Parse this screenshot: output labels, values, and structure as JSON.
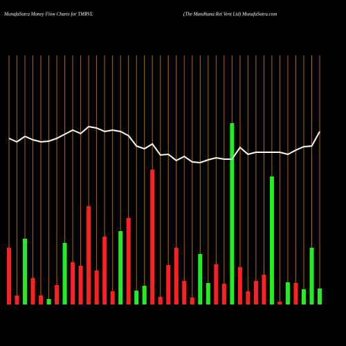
{
  "chart_data": {
    "type": "bar",
    "title": "MunafaSutra  Money Flow  Charts for TMRVL",
    "subtitle": "(The    Mandhana  Ret Vent Ltd) MunafaSutra.com",
    "categories": [
      null,
      null,
      null,
      null,
      null,
      null,
      null,
      null,
      null,
      null,
      null,
      null,
      null,
      null,
      null,
      null,
      null,
      null,
      null,
      null,
      null,
      null,
      null,
      null,
      null,
      null,
      null,
      null,
      null,
      null,
      null,
      null,
      null,
      null,
      null,
      null,
      null,
      null,
      null,
      null
    ],
    "values": [
      82,
      13,
      95,
      38,
      13,
      8,
      28,
      89,
      61,
      56,
      142,
      49,
      98,
      19,
      106,
      125,
      20,
      27,
      195,
      11,
      57,
      82,
      34,
      10,
      73,
      31,
      58,
      30,
      262,
      54,
      19,
      34,
      43,
      185,
      4,
      32,
      31,
      22,
      82,
      23
    ],
    "colors": [
      "#ff2020",
      "#ff2020",
      "#22ee22",
      "#ff2020",
      "#ff2020",
      "#22ee22",
      "#ff2020",
      "#22ee22",
      "#ff2020",
      "#ff2020",
      "#ff2020",
      "#ff2020",
      "#ff2020",
      "#ff2020",
      "#22ee22",
      "#ff2020",
      "#22ee22",
      "#22ee22",
      "#ff2020",
      "#ff2020",
      "#ff2020",
      "#ff2020",
      "#ff2020",
      "#ff2020",
      "#22ee22",
      "#22ee22",
      "#ff2020",
      "#ff2020",
      "#22ee22",
      "#ff2020",
      "#ff2020",
      "#ff2020",
      "#ff2020",
      "#22ee22",
      "#ff2020",
      "#22ee22",
      "#ff2020",
      "#22ee22",
      "#22ee22",
      "#22ee22"
    ],
    "line": {
      "color": "#ffffff",
      "values": [
        240,
        235,
        243,
        238,
        235,
        236,
        240,
        246,
        252,
        247,
        257,
        255,
        250,
        252,
        250,
        244,
        229,
        225,
        232,
        216,
        217,
        208,
        214,
        206,
        205,
        209,
        212,
        210,
        210,
        227,
        217,
        220,
        220,
        220,
        220,
        217,
        223,
        228,
        229,
        250
      ]
    },
    "ylim": [
      0,
      360
    ],
    "grid_color": "#b86a00"
  }
}
